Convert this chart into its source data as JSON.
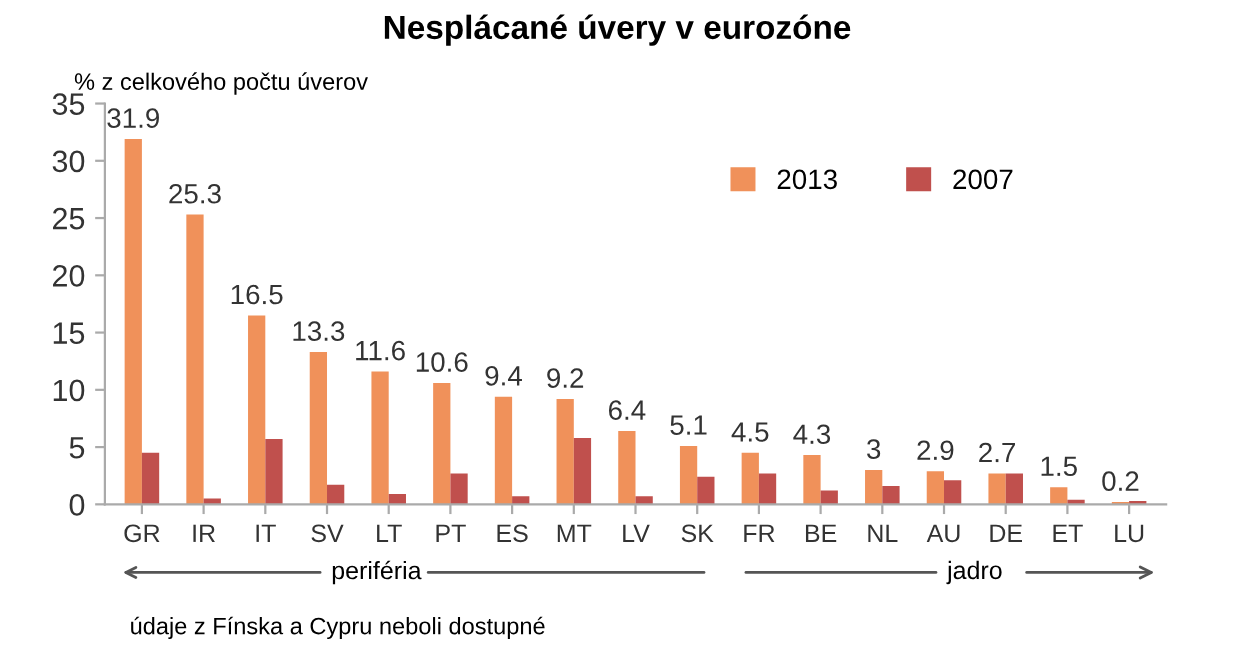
{
  "chart_data": {
    "type": "bar",
    "title": "Nesplácané úvery v eurozóne",
    "ylabel": "% z celkového počtu úverov",
    "categories": [
      "GR",
      "IR",
      "IT",
      "SV",
      "LT",
      "PT",
      "ES",
      "MT",
      "LV",
      "SK",
      "FR",
      "BE",
      "NL",
      "AU",
      "DE",
      "ET",
      "LU"
    ],
    "series": [
      {
        "name": "2013",
        "color": "#f0915a",
        "values": [
          31.9,
          25.3,
          16.5,
          13.3,
          11.6,
          10.6,
          9.4,
          9.2,
          6.4,
          5.1,
          4.5,
          4.3,
          3,
          2.9,
          2.7,
          1.5,
          0.2
        ],
        "value_labels": [
          "31.9",
          "25.3",
          "16.5",
          "13.3",
          "11.6",
          "10.6",
          "9.4",
          "9.2",
          "6.4",
          "5.1",
          "4.5",
          "4.3",
          "3",
          "2.9",
          "2.7",
          "1.5",
          "0.2"
        ]
      },
      {
        "name": "2007",
        "color": "#c0504d",
        "values": [
          4.5,
          0.5,
          5.7,
          1.7,
          0.9,
          2.7,
          0.7,
          5.8,
          0.7,
          2.4,
          2.7,
          1.2,
          1.6,
          2.1,
          2.7,
          0.4,
          0.3
        ]
      }
    ],
    "ylim": [
      0,
      35
    ],
    "yticks": [
      0,
      5,
      10,
      15,
      20,
      25,
      30,
      35
    ],
    "grid": false,
    "legend": "top right",
    "annotations": [
      "periféria",
      "jadro",
      "údaje z Fínska a Cypru neboli dostupné"
    ]
  }
}
